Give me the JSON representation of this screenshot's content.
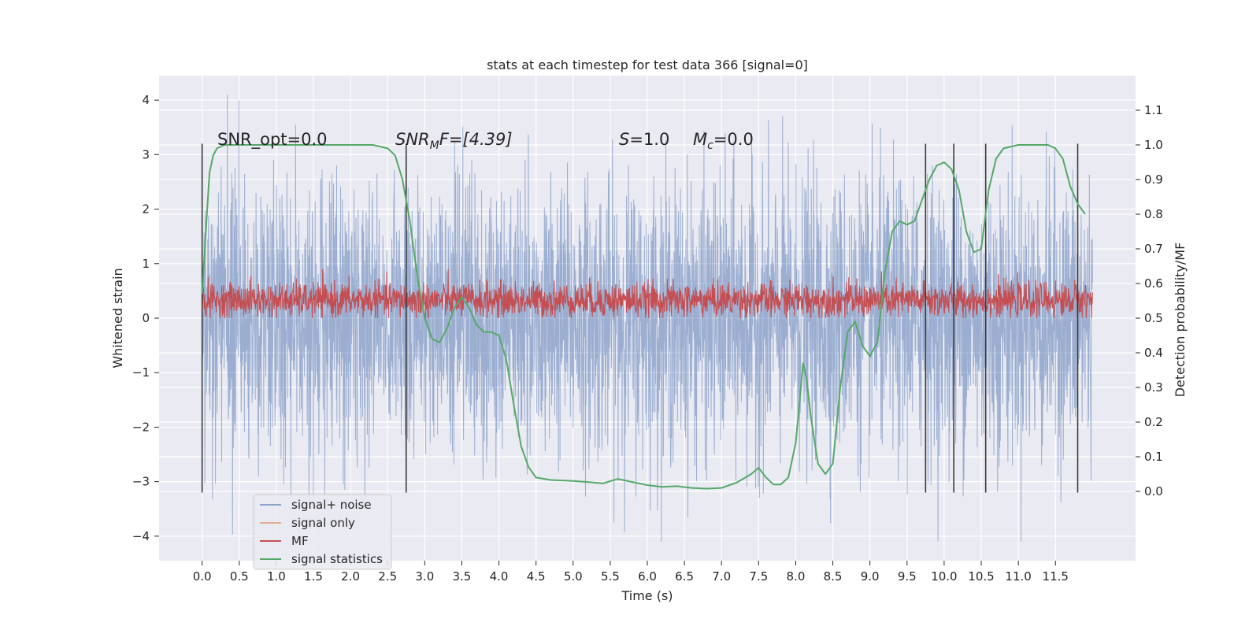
{
  "chart_data": {
    "type": "line",
    "title": "stats at each timestep for test data 366 [signal=0]",
    "xlabel": "Time (s)",
    "ylabel_left": "Whitened strain",
    "ylabel_right": "Detection probability/MF",
    "xlim": [
      -0.58,
      12.58
    ],
    "ylim_left": [
      -4.45,
      4.45
    ],
    "ylim_right": [
      -0.2,
      1.2
    ],
    "x_ticks": [
      0.0,
      0.5,
      1.0,
      1.5,
      2.0,
      2.5,
      3.0,
      3.5,
      4.0,
      4.5,
      5.0,
      5.5,
      6.0,
      6.5,
      7.0,
      7.5,
      8.0,
      8.5,
      9.0,
      9.5,
      10.0,
      10.5,
      11.0,
      11.5
    ],
    "x_tick_labels": [
      "0.0",
      "0.5",
      "1.0",
      "1.5",
      "2.0",
      "2.5",
      "3.0",
      "3.5",
      "4.0",
      "4.5",
      "5.0",
      "5.5",
      "6.0",
      "6.5",
      "7.0",
      "7.5",
      "8.0",
      "8.5",
      "9.0",
      "9.5",
      "10.0",
      "10.5",
      "11.0",
      "11.5"
    ],
    "y_left_ticks": [
      -4,
      -3,
      -2,
      -1,
      0,
      1,
      2,
      3,
      4
    ],
    "y_left_tick_labels": [
      "−4",
      "−3",
      "−2",
      "−1",
      "0",
      "1",
      "2",
      "3",
      "4"
    ],
    "y_right_ticks": [
      0.0,
      0.1,
      0.2,
      0.3,
      0.4,
      0.5,
      0.6,
      0.7,
      0.8,
      0.9,
      1.0,
      1.1
    ],
    "y_right_tick_labels": [
      "0.0",
      "0.1",
      "0.2",
      "0.3",
      "0.4",
      "0.5",
      "0.6",
      "0.7",
      "0.8",
      "0.9",
      "1.0",
      "1.1"
    ],
    "grid": true,
    "legend_placement": "lower-left",
    "series": [
      {
        "name": "signal+ noise",
        "color": "#4c72b0",
        "axis": "left",
        "data_range": [
          0.0,
          12.0
        ],
        "approx_min": -4.1,
        "approx_max": 4.1
      },
      {
        "name": "signal only",
        "color": "#dd8452",
        "axis": "left",
        "values": []
      },
      {
        "name": "MF",
        "color": "#c44e52",
        "axis": "left",
        "data_range": [
          0.0,
          12.0
        ],
        "approx_min": 0.0,
        "approx_max": 0.95
      },
      {
        "name": "signal statistics",
        "color": "#55a868",
        "axis": "right",
        "x": [
          0.0,
          0.05,
          0.1,
          0.15,
          0.2,
          0.3,
          0.5,
          1.0,
          1.5,
          2.0,
          2.3,
          2.5,
          2.6,
          2.7,
          2.8,
          2.9,
          3.0,
          3.1,
          3.2,
          3.3,
          3.4,
          3.5,
          3.6,
          3.7,
          3.8,
          3.9,
          4.0,
          4.1,
          4.2,
          4.3,
          4.4,
          4.5,
          4.7,
          5.0,
          5.2,
          5.4,
          5.6,
          5.8,
          6.0,
          6.2,
          6.4,
          6.6,
          6.8,
          7.0,
          7.2,
          7.4,
          7.5,
          7.6,
          7.7,
          7.8,
          7.9,
          8.0,
          8.1,
          8.15,
          8.2,
          8.3,
          8.4,
          8.5,
          8.6,
          8.7,
          8.8,
          8.9,
          9.0,
          9.1,
          9.2,
          9.3,
          9.4,
          9.5,
          9.6,
          9.7,
          9.8,
          9.9,
          10.0,
          10.1,
          10.2,
          10.3,
          10.4,
          10.5,
          10.6,
          10.7,
          10.8,
          11.0,
          11.2,
          11.4,
          11.5,
          11.6,
          11.7,
          11.8,
          11.9
        ],
        "y": [
          0.57,
          0.75,
          0.92,
          0.97,
          0.99,
          1.0,
          1.0,
          1.0,
          1.0,
          1.0,
          1.0,
          0.99,
          0.97,
          0.9,
          0.78,
          0.62,
          0.5,
          0.44,
          0.43,
          0.47,
          0.53,
          0.56,
          0.53,
          0.48,
          0.46,
          0.46,
          0.45,
          0.38,
          0.25,
          0.13,
          0.07,
          0.04,
          0.033,
          0.03,
          0.027,
          0.023,
          0.036,
          0.027,
          0.018,
          0.013,
          0.015,
          0.01,
          0.008,
          0.01,
          0.025,
          0.05,
          0.068,
          0.04,
          0.02,
          0.02,
          0.04,
          0.14,
          0.37,
          0.32,
          0.22,
          0.08,
          0.05,
          0.08,
          0.3,
          0.46,
          0.49,
          0.42,
          0.39,
          0.43,
          0.63,
          0.75,
          0.78,
          0.77,
          0.78,
          0.84,
          0.9,
          0.94,
          0.95,
          0.93,
          0.87,
          0.75,
          0.69,
          0.7,
          0.87,
          0.96,
          0.99,
          1.0,
          1.0,
          1.0,
          0.99,
          0.96,
          0.88,
          0.83,
          0.8
        ]
      }
    ],
    "vlines": [
      0.0,
      2.75,
      9.75,
      10.13,
      10.56,
      11.8
    ],
    "annotations": {
      "snr_opt": "SNR_opt=0.0",
      "snr_mf_label": "SNR",
      "snr_mf_sub": "M",
      "snr_mf_rest": "F=[4.39]",
      "s_label": "S",
      "s_rest": "=1.0",
      "mc_label": "M",
      "mc_sub": "c",
      "mc_rest": "=0.0"
    },
    "colors": {
      "plot_bg": "#eaeaf2",
      "grid": "#ffffff",
      "noise": "#4c72b0",
      "signal_only": "#dd8452",
      "mf": "#c44e52",
      "stat": "#55a868",
      "vline": "#3a3a3a"
    }
  }
}
